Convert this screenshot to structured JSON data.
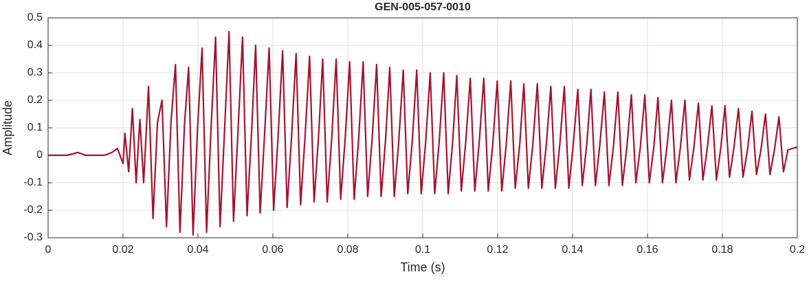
{
  "chart_data": {
    "type": "line",
    "title": "GEN-005-057-0010",
    "xlabel": "Time (s)",
    "ylabel": "Amplitude",
    "xlim": [
      0,
      0.2
    ],
    "ylim": [
      -0.3,
      0.5
    ],
    "xticks": [
      0,
      0.02,
      0.04,
      0.06,
      0.08,
      0.1,
      0.12,
      0.14,
      0.16,
      0.18,
      0.2
    ],
    "yticks": [
      -0.3,
      -0.2,
      -0.1,
      0,
      0.1,
      0.2,
      0.3,
      0.4,
      0.5
    ],
    "grid": true,
    "series": [
      {
        "color": "#a2142f",
        "x": [
          0,
          0.005,
          0.008,
          0.01,
          0.015,
          0.017,
          0.0185,
          0.02,
          0.0205,
          0.0215,
          0.0225,
          0.0235,
          0.0245,
          0.0255,
          0.0268,
          0.028,
          0.0292,
          0.0304,
          0.0316,
          0.0328,
          0.034,
          0.0352,
          0.0364,
          0.0375,
          0.0387,
          0.0399,
          0.0411,
          0.0423,
          0.0435,
          0.0447,
          0.0459,
          0.0471,
          0.0483,
          0.0495,
          0.0507,
          0.0519,
          0.0531,
          0.0543,
          0.0554,
          0.0566,
          0.0578,
          0.059,
          0.0602,
          0.0614,
          0.0626,
          0.0638,
          0.065,
          0.0662,
          0.0674,
          0.0686,
          0.0698,
          0.071,
          0.0722,
          0.0733,
          0.0745,
          0.0757,
          0.0769,
          0.0781,
          0.0793,
          0.0805,
          0.0817,
          0.0829,
          0.0841,
          0.0853,
          0.0865,
          0.0877,
          0.0889,
          0.0901,
          0.0912,
          0.0924,
          0.0936,
          0.0948,
          0.096,
          0.0972,
          0.0984,
          0.0996,
          0.1008,
          0.102,
          0.1032,
          0.1044,
          0.1056,
          0.1068,
          0.108,
          0.1091,
          0.1103,
          0.1115,
          0.1127,
          0.1139,
          0.1151,
          0.1163,
          0.1175,
          0.1187,
          0.1199,
          0.1211,
          0.1223,
          0.1235,
          0.1247,
          0.1259,
          0.127,
          0.1282,
          0.1294,
          0.1306,
          0.1318,
          0.133,
          0.1342,
          0.1354,
          0.1366,
          0.1378,
          0.139,
          0.1402,
          0.1414,
          0.1426,
          0.1438,
          0.1449,
          0.1461,
          0.1473,
          0.1485,
          0.1497,
          0.1509,
          0.1521,
          0.1533,
          0.1545,
          0.1557,
          0.1569,
          0.1581,
          0.1593,
          0.1605,
          0.1617,
          0.1628,
          0.164,
          0.1652,
          0.1664,
          0.1676,
          0.1688,
          0.17,
          0.1712,
          0.1724,
          0.1736,
          0.1748,
          0.176,
          0.1772,
          0.1784,
          0.1796,
          0.1807,
          0.1819,
          0.1831,
          0.1843,
          0.1855,
          0.1867,
          0.1879,
          0.1891,
          0.1903,
          0.1915,
          0.1927,
          0.1939,
          0.1951,
          0.1963,
          0.1975,
          0.2
        ],
        "values": [
          0,
          0,
          0.01,
          0,
          0,
          0.01,
          0.025,
          -0.03,
          0.08,
          -0.06,
          0.17,
          -0.1,
          0.13,
          -0.1,
          0.25,
          -0.23,
          0.12,
          0.2,
          -0.26,
          0.12,
          0.33,
          -0.28,
          0.11,
          0.32,
          -0.29,
          0.1,
          0.39,
          -0.28,
          0.1,
          0.43,
          -0.26,
          0.09,
          0.45,
          -0.24,
          0.09,
          0.43,
          -0.22,
          0.08,
          0.4,
          -0.21,
          0.08,
          0.39,
          -0.2,
          0.07,
          0.38,
          -0.19,
          0.07,
          0.37,
          -0.18,
          0.07,
          0.36,
          -0.17,
          0.07,
          0.35,
          -0.17,
          0.06,
          0.35,
          -0.16,
          0.06,
          0.34,
          -0.16,
          0.06,
          0.34,
          -0.15,
          0.06,
          0.33,
          -0.15,
          0.06,
          0.32,
          -0.15,
          0.05,
          0.31,
          -0.14,
          0.05,
          0.31,
          -0.14,
          0.05,
          0.3,
          -0.14,
          0.05,
          0.3,
          -0.14,
          0.05,
          0.29,
          -0.13,
          0.05,
          0.28,
          -0.13,
          0.05,
          0.28,
          -0.13,
          0.04,
          0.27,
          -0.13,
          0.04,
          0.27,
          -0.12,
          0.04,
          0.26,
          -0.12,
          0.04,
          0.26,
          -0.12,
          0.04,
          0.25,
          -0.12,
          0.04,
          0.25,
          -0.12,
          0.04,
          0.24,
          -0.11,
          0.04,
          0.24,
          -0.11,
          0.04,
          0.23,
          -0.11,
          0.03,
          0.23,
          -0.11,
          0.03,
          0.22,
          -0.1,
          0.03,
          0.22,
          -0.1,
          0.03,
          0.21,
          -0.1,
          0.03,
          0.2,
          -0.1,
          0.03,
          0.2,
          -0.09,
          0.03,
          0.19,
          -0.09,
          0.03,
          0.18,
          -0.09,
          0.03,
          0.18,
          -0.08,
          0.03,
          0.17,
          -0.08,
          0.02,
          0.16,
          -0.07,
          0.02,
          0.15,
          -0.07,
          0.02,
          0.14,
          -0.06,
          0.02,
          0.03
        ]
      }
    ]
  }
}
